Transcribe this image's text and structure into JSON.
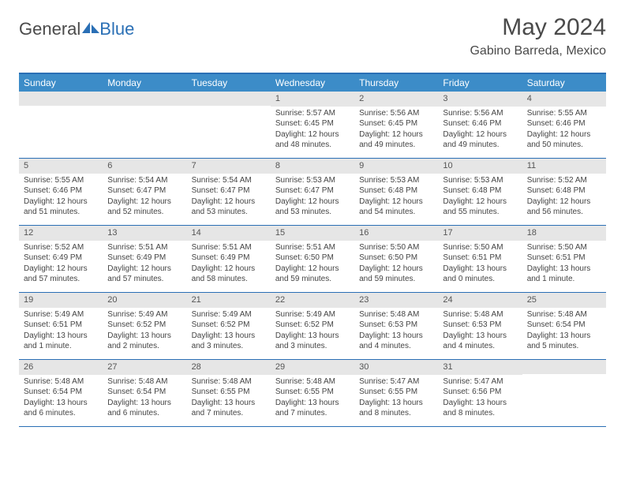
{
  "logo": {
    "general": "General",
    "blue": "Blue"
  },
  "title": "May 2024",
  "location": "Gabino Barreda, Mexico",
  "dayNames": [
    "Sunday",
    "Monday",
    "Tuesday",
    "Wednesday",
    "Thursday",
    "Friday",
    "Saturday"
  ],
  "style": {
    "header_bg": "#3c8cc8",
    "header_text": "#ffffff",
    "border_color": "#2a6fb5",
    "daynum_bg": "#e6e6e6",
    "page_bg": "#ffffff",
    "text_color": "#444444",
    "title_color": "#4a4a4a",
    "title_fontsize": 30,
    "location_fontsize": 16,
    "dayheader_fontsize": 12,
    "cell_fontsize": 10
  },
  "weeks": [
    [
      {
        "day": "",
        "sunrise": "",
        "sunset": "",
        "daylight1": "",
        "daylight2": ""
      },
      {
        "day": "",
        "sunrise": "",
        "sunset": "",
        "daylight1": "",
        "daylight2": ""
      },
      {
        "day": "",
        "sunrise": "",
        "sunset": "",
        "daylight1": "",
        "daylight2": ""
      },
      {
        "day": "1",
        "sunrise": "Sunrise: 5:57 AM",
        "sunset": "Sunset: 6:45 PM",
        "daylight1": "Daylight: 12 hours",
        "daylight2": "and 48 minutes."
      },
      {
        "day": "2",
        "sunrise": "Sunrise: 5:56 AM",
        "sunset": "Sunset: 6:45 PM",
        "daylight1": "Daylight: 12 hours",
        "daylight2": "and 49 minutes."
      },
      {
        "day": "3",
        "sunrise": "Sunrise: 5:56 AM",
        "sunset": "Sunset: 6:46 PM",
        "daylight1": "Daylight: 12 hours",
        "daylight2": "and 49 minutes."
      },
      {
        "day": "4",
        "sunrise": "Sunrise: 5:55 AM",
        "sunset": "Sunset: 6:46 PM",
        "daylight1": "Daylight: 12 hours",
        "daylight2": "and 50 minutes."
      }
    ],
    [
      {
        "day": "5",
        "sunrise": "Sunrise: 5:55 AM",
        "sunset": "Sunset: 6:46 PM",
        "daylight1": "Daylight: 12 hours",
        "daylight2": "and 51 minutes."
      },
      {
        "day": "6",
        "sunrise": "Sunrise: 5:54 AM",
        "sunset": "Sunset: 6:47 PM",
        "daylight1": "Daylight: 12 hours",
        "daylight2": "and 52 minutes."
      },
      {
        "day": "7",
        "sunrise": "Sunrise: 5:54 AM",
        "sunset": "Sunset: 6:47 PM",
        "daylight1": "Daylight: 12 hours",
        "daylight2": "and 53 minutes."
      },
      {
        "day": "8",
        "sunrise": "Sunrise: 5:53 AM",
        "sunset": "Sunset: 6:47 PM",
        "daylight1": "Daylight: 12 hours",
        "daylight2": "and 53 minutes."
      },
      {
        "day": "9",
        "sunrise": "Sunrise: 5:53 AM",
        "sunset": "Sunset: 6:48 PM",
        "daylight1": "Daylight: 12 hours",
        "daylight2": "and 54 minutes."
      },
      {
        "day": "10",
        "sunrise": "Sunrise: 5:53 AM",
        "sunset": "Sunset: 6:48 PM",
        "daylight1": "Daylight: 12 hours",
        "daylight2": "and 55 minutes."
      },
      {
        "day": "11",
        "sunrise": "Sunrise: 5:52 AM",
        "sunset": "Sunset: 6:48 PM",
        "daylight1": "Daylight: 12 hours",
        "daylight2": "and 56 minutes."
      }
    ],
    [
      {
        "day": "12",
        "sunrise": "Sunrise: 5:52 AM",
        "sunset": "Sunset: 6:49 PM",
        "daylight1": "Daylight: 12 hours",
        "daylight2": "and 57 minutes."
      },
      {
        "day": "13",
        "sunrise": "Sunrise: 5:51 AM",
        "sunset": "Sunset: 6:49 PM",
        "daylight1": "Daylight: 12 hours",
        "daylight2": "and 57 minutes."
      },
      {
        "day": "14",
        "sunrise": "Sunrise: 5:51 AM",
        "sunset": "Sunset: 6:49 PM",
        "daylight1": "Daylight: 12 hours",
        "daylight2": "and 58 minutes."
      },
      {
        "day": "15",
        "sunrise": "Sunrise: 5:51 AM",
        "sunset": "Sunset: 6:50 PM",
        "daylight1": "Daylight: 12 hours",
        "daylight2": "and 59 minutes."
      },
      {
        "day": "16",
        "sunrise": "Sunrise: 5:50 AM",
        "sunset": "Sunset: 6:50 PM",
        "daylight1": "Daylight: 12 hours",
        "daylight2": "and 59 minutes."
      },
      {
        "day": "17",
        "sunrise": "Sunrise: 5:50 AM",
        "sunset": "Sunset: 6:51 PM",
        "daylight1": "Daylight: 13 hours",
        "daylight2": "and 0 minutes."
      },
      {
        "day": "18",
        "sunrise": "Sunrise: 5:50 AM",
        "sunset": "Sunset: 6:51 PM",
        "daylight1": "Daylight: 13 hours",
        "daylight2": "and 1 minute."
      }
    ],
    [
      {
        "day": "19",
        "sunrise": "Sunrise: 5:49 AM",
        "sunset": "Sunset: 6:51 PM",
        "daylight1": "Daylight: 13 hours",
        "daylight2": "and 1 minute."
      },
      {
        "day": "20",
        "sunrise": "Sunrise: 5:49 AM",
        "sunset": "Sunset: 6:52 PM",
        "daylight1": "Daylight: 13 hours",
        "daylight2": "and 2 minutes."
      },
      {
        "day": "21",
        "sunrise": "Sunrise: 5:49 AM",
        "sunset": "Sunset: 6:52 PM",
        "daylight1": "Daylight: 13 hours",
        "daylight2": "and 3 minutes."
      },
      {
        "day": "22",
        "sunrise": "Sunrise: 5:49 AM",
        "sunset": "Sunset: 6:52 PM",
        "daylight1": "Daylight: 13 hours",
        "daylight2": "and 3 minutes."
      },
      {
        "day": "23",
        "sunrise": "Sunrise: 5:48 AM",
        "sunset": "Sunset: 6:53 PM",
        "daylight1": "Daylight: 13 hours",
        "daylight2": "and 4 minutes."
      },
      {
        "day": "24",
        "sunrise": "Sunrise: 5:48 AM",
        "sunset": "Sunset: 6:53 PM",
        "daylight1": "Daylight: 13 hours",
        "daylight2": "and 4 minutes."
      },
      {
        "day": "25",
        "sunrise": "Sunrise: 5:48 AM",
        "sunset": "Sunset: 6:54 PM",
        "daylight1": "Daylight: 13 hours",
        "daylight2": "and 5 minutes."
      }
    ],
    [
      {
        "day": "26",
        "sunrise": "Sunrise: 5:48 AM",
        "sunset": "Sunset: 6:54 PM",
        "daylight1": "Daylight: 13 hours",
        "daylight2": "and 6 minutes."
      },
      {
        "day": "27",
        "sunrise": "Sunrise: 5:48 AM",
        "sunset": "Sunset: 6:54 PM",
        "daylight1": "Daylight: 13 hours",
        "daylight2": "and 6 minutes."
      },
      {
        "day": "28",
        "sunrise": "Sunrise: 5:48 AM",
        "sunset": "Sunset: 6:55 PM",
        "daylight1": "Daylight: 13 hours",
        "daylight2": "and 7 minutes."
      },
      {
        "day": "29",
        "sunrise": "Sunrise: 5:48 AM",
        "sunset": "Sunset: 6:55 PM",
        "daylight1": "Daylight: 13 hours",
        "daylight2": "and 7 minutes."
      },
      {
        "day": "30",
        "sunrise": "Sunrise: 5:47 AM",
        "sunset": "Sunset: 6:55 PM",
        "daylight1": "Daylight: 13 hours",
        "daylight2": "and 8 minutes."
      },
      {
        "day": "31",
        "sunrise": "Sunrise: 5:47 AM",
        "sunset": "Sunset: 6:56 PM",
        "daylight1": "Daylight: 13 hours",
        "daylight2": "and 8 minutes."
      },
      {
        "day": "",
        "sunrise": "",
        "sunset": "",
        "daylight1": "",
        "daylight2": ""
      }
    ]
  ]
}
